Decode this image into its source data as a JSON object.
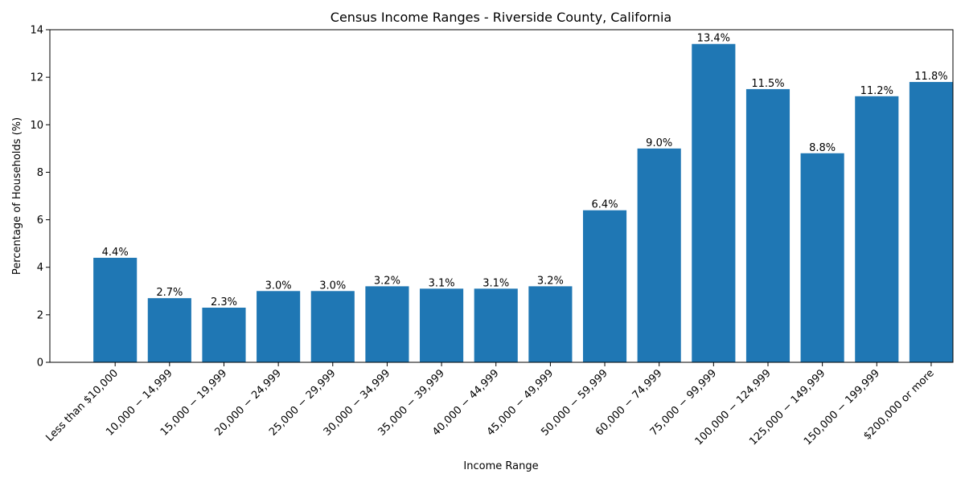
{
  "chart_data": {
    "type": "bar",
    "title": "Census Income Ranges - Riverside County, California",
    "xlabel": "Income Range",
    "ylabel": "Percentage of Households (%)",
    "ylim": [
      0,
      14
    ],
    "yticks": [
      0,
      2,
      4,
      6,
      8,
      10,
      12,
      14
    ],
    "grid": false,
    "bar_color": "#1f77b4",
    "categories": [
      "Less than $10,000",
      "10,000 − 14,999",
      "15,000 − 19,999",
      "20,000 − 24,999",
      "25,000 − 29,999",
      "30,000 − 34,999",
      "35,000 − 39,999",
      "40,000 − 44,999",
      "45,000 − 49,999",
      "50,000 − 59,999",
      "60,000 − 74,999",
      "75,000 − 99,999",
      "100,000 − 124,999",
      "125,000 − 149,999",
      "150,000 − 199,999",
      "$200,000 or more"
    ],
    "values": [
      4.4,
      2.7,
      2.3,
      3.0,
      3.0,
      3.2,
      3.1,
      3.1,
      3.2,
      6.4,
      9.0,
      13.4,
      11.5,
      8.8,
      11.2,
      11.8
    ],
    "value_labels": [
      "4.4%",
      "2.7%",
      "2.3%",
      "3.0%",
      "3.0%",
      "3.2%",
      "3.1%",
      "3.1%",
      "3.2%",
      "6.4%",
      "9.0%",
      "13.4%",
      "11.5%",
      "8.8%",
      "11.2%",
      "11.8%"
    ]
  }
}
